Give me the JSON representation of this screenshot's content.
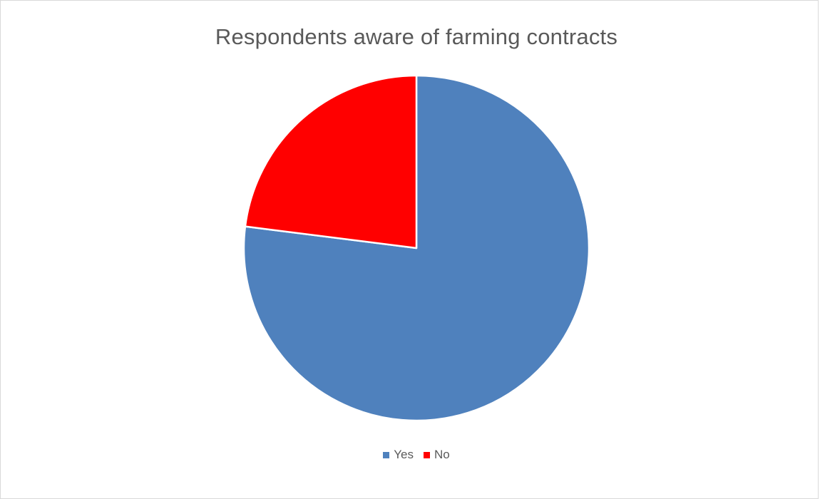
{
  "chart_data": {
    "type": "pie",
    "title": "Respondents aware of farming contracts",
    "categories": [
      "Yes",
      "No"
    ],
    "values": [
      77,
      23
    ],
    "colors": [
      "#4f81bd",
      "#ff0000"
    ],
    "start_angle_deg": 0,
    "direction": "clockwise",
    "legend_position": "bottom"
  }
}
